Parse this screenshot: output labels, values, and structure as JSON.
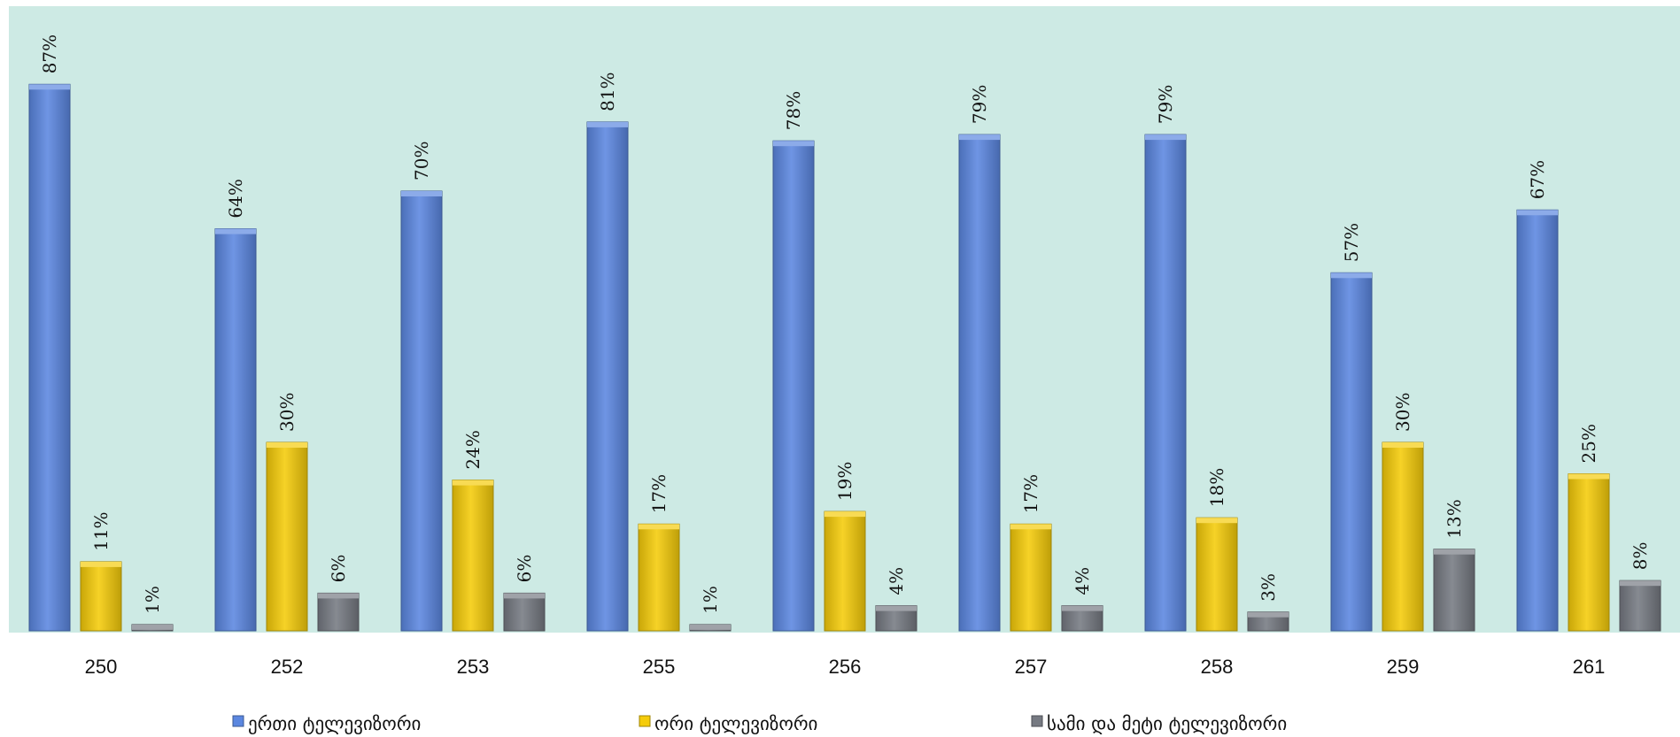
{
  "chart_data": {
    "type": "bar",
    "categories": [
      "250",
      "252",
      "253",
      "255",
      "256",
      "257",
      "258",
      "259",
      "261"
    ],
    "series": [
      {
        "name": "ერთი ტელევიზორი",
        "values": [
          87,
          64,
          70,
          81,
          78,
          79,
          79,
          57,
          67
        ],
        "labels": [
          "87%",
          "64%",
          "70%",
          "81%",
          "78%",
          "79%",
          "79%",
          "57%",
          "67%"
        ],
        "color": "#5b87e0"
      },
      {
        "name": "ორი ტელევიზორი",
        "values": [
          11,
          30,
          24,
          17,
          19,
          17,
          18,
          30,
          25
        ],
        "labels": [
          "11%",
          "30%",
          "24%",
          "17%",
          "19%",
          "17%",
          "18%",
          "30%",
          "25%"
        ],
        "color": "#f5cc0a"
      },
      {
        "name": "სამი და მეტი ტელევიზორი",
        "values": [
          1,
          6,
          6,
          1,
          4,
          4,
          3,
          13,
          8
        ],
        "labels": [
          "1%",
          "6%",
          "6%",
          "1%",
          "4%",
          "4%",
          "3%",
          "13%",
          "8%"
        ],
        "color": "#767a82"
      }
    ],
    "title": "",
    "xlabel": "",
    "ylabel": "",
    "ylim": [
      0,
      90
    ],
    "grid": false,
    "legend_position": "bottom",
    "plot_background": "#cdeae4"
  }
}
